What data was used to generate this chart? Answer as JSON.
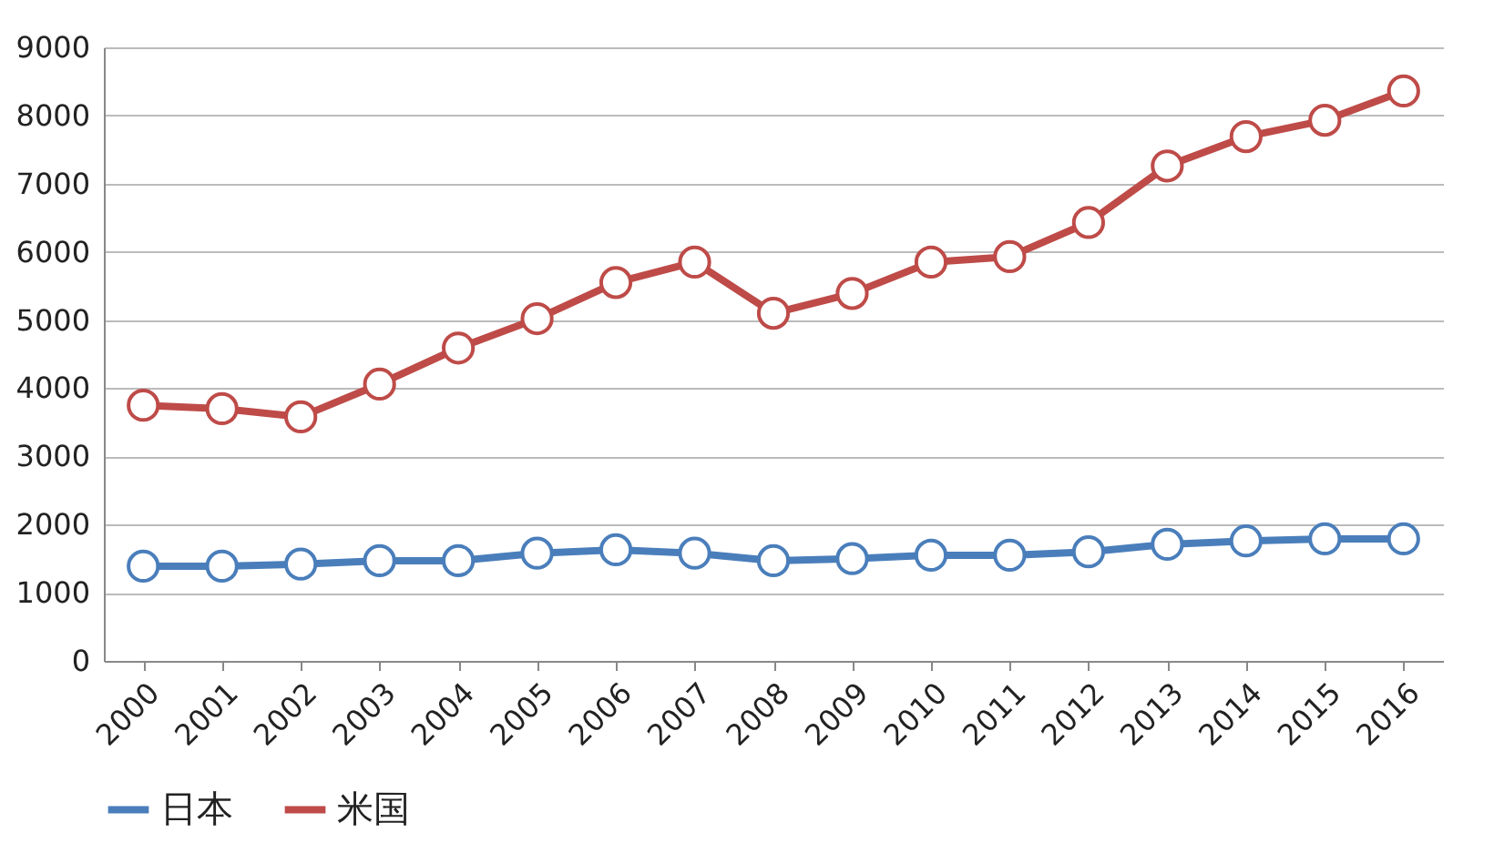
{
  "chart_data": {
    "type": "line",
    "categories": [
      "2000",
      "2001",
      "2002",
      "2003",
      "2004",
      "2005",
      "2006",
      "2007",
      "2008",
      "2009",
      "2010",
      "2011",
      "2012",
      "2013",
      "2014",
      "2015",
      "2016"
    ],
    "series": [
      {
        "name": "日本",
        "color": "#4a7ebb",
        "values": [
          1390,
          1390,
          1420,
          1470,
          1470,
          1580,
          1630,
          1580,
          1470,
          1500,
          1550,
          1550,
          1600,
          1710,
          1760,
          1790,
          1790
        ]
      },
      {
        "name": "米国",
        "color": "#be4b48",
        "values": [
          3750,
          3700,
          3580,
          4060,
          4590,
          5020,
          5550,
          5850,
          5100,
          5390,
          5850,
          5930,
          6430,
          7260,
          7690,
          7930,
          8360
        ]
      }
    ],
    "ylim": [
      0,
      9000
    ],
    "yticks": [
      0,
      1000,
      2000,
      3000,
      4000,
      5000,
      6000,
      7000,
      8000,
      9000
    ],
    "grid": "y",
    "legend": "bottom",
    "marker": "circle",
    "line_style": "solid"
  }
}
